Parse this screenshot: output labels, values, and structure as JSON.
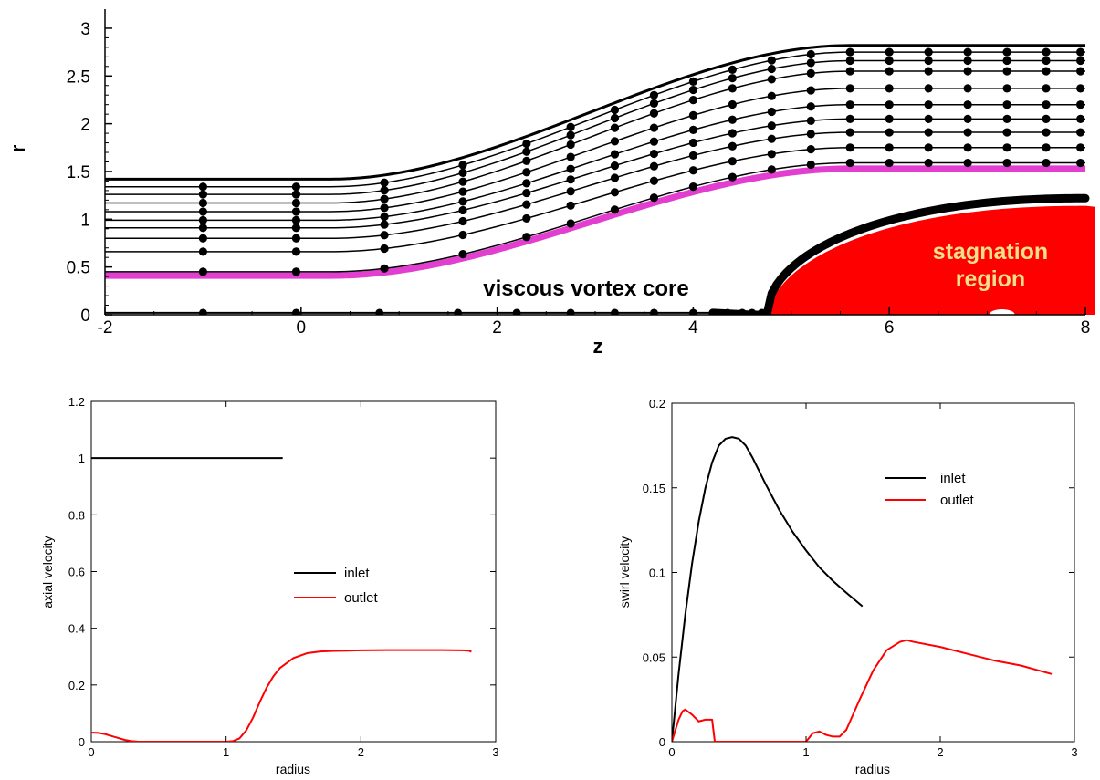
{
  "chart_data": [
    {
      "type": "line",
      "xlabel": "z",
      "ylabel": "r",
      "xlim": [
        -2,
        8
      ],
      "ylim": [
        0,
        3.2
      ],
      "x_ticks": [
        "-2",
        "0",
        "2",
        "4",
        "6",
        "8"
      ],
      "y_ticks": [
        "0",
        "0.5",
        "1",
        "1.5",
        "2",
        "2.5",
        "3"
      ],
      "grid": false,
      "colors": {
        "streamline": "#000000",
        "core_boundary": "#e23fd0",
        "stagnation": "#ff0000",
        "annotation_text": "#f5e08a"
      },
      "annotations": [
        "viscous vortex core",
        "stagnation",
        "region"
      ],
      "series": [
        {
          "inlet_r": 1.34,
          "outlet_r": 2.75,
          "markers": true
        },
        {
          "inlet_r": 1.26,
          "outlet_r": 2.66,
          "markers": true
        },
        {
          "inlet_r": 1.17,
          "outlet_r": 2.55,
          "markers": true
        },
        {
          "inlet_r": 1.08,
          "outlet_r": 2.37,
          "markers": true
        },
        {
          "inlet_r": 0.99,
          "outlet_r": 2.2,
          "markers": true
        },
        {
          "inlet_r": 0.91,
          "outlet_r": 2.05,
          "markers": true
        },
        {
          "inlet_r": 0.8,
          "outlet_r": 1.91,
          "markers": true
        },
        {
          "inlet_r": 0.66,
          "outlet_r": 1.75,
          "markers": true
        },
        {
          "inlet_r": 0.45,
          "outlet_r": 1.59,
          "markers": true
        }
      ],
      "wall": {
        "inlet_r": 1.42,
        "outlet_r": 2.82
      },
      "core_boundary": {
        "inlet_r": 0.41,
        "outlet_r": 1.53
      },
      "axis_line_markers_z": [
        -1.0,
        -0.05,
        0.8,
        1.6,
        2.2,
        2.75,
        3.2,
        3.6,
        4.0,
        4.2,
        4.35,
        4.5,
        4.6,
        4.7
      ]
    },
    {
      "type": "line",
      "xlabel": "radius",
      "ylabel": "axial velocity",
      "xlim": [
        0,
        3
      ],
      "ylim": [
        0,
        1.2
      ],
      "x_ticks": [
        "0",
        "1",
        "2",
        "3"
      ],
      "y_ticks": [
        "0",
        "0.2",
        "0.4",
        "0.6",
        "0.8",
        "1",
        "1.2"
      ],
      "grid": false,
      "legend_position": "center-right",
      "series": [
        {
          "name": "inlet",
          "color": "#000000",
          "x": [
            0,
            0.5,
            1.0,
            1.42
          ],
          "y": [
            1.0,
            1.0,
            1.0,
            1.0
          ]
        },
        {
          "name": "outlet",
          "color": "#ff0000",
          "x": [
            0,
            0.05,
            0.1,
            0.15,
            0.2,
            0.25,
            0.3,
            0.35,
            0.4,
            0.6,
            0.8,
            1.0,
            1.05,
            1.1,
            1.15,
            1.2,
            1.25,
            1.3,
            1.35,
            1.4,
            1.5,
            1.6,
            1.7,
            1.8,
            2.0,
            2.2,
            2.4,
            2.6,
            2.75,
            2.8,
            2.82
          ],
          "y": [
            0.032,
            0.031,
            0.027,
            0.02,
            0.013,
            0.006,
            0.002,
            0.0,
            0.0,
            0.0,
            0.0,
            0.0,
            0.002,
            0.012,
            0.04,
            0.085,
            0.14,
            0.19,
            0.23,
            0.26,
            0.295,
            0.312,
            0.318,
            0.32,
            0.322,
            0.323,
            0.323,
            0.323,
            0.322,
            0.321,
            0.317
          ]
        }
      ]
    },
    {
      "type": "line",
      "xlabel": "radius",
      "ylabel": "swirl velocity",
      "xlim": [
        0,
        3
      ],
      "ylim": [
        0,
        0.2
      ],
      "x_ticks": [
        "0",
        "1",
        "2",
        "3"
      ],
      "y_ticks": [
        "0",
        "0.05",
        "0.1",
        "0.15",
        "0.2"
      ],
      "grid": false,
      "legend_position": "top-right",
      "series": [
        {
          "name": "inlet",
          "color": "#000000",
          "x": [
            0,
            0.05,
            0.1,
            0.15,
            0.2,
            0.25,
            0.3,
            0.35,
            0.4,
            0.45,
            0.5,
            0.55,
            0.6,
            0.7,
            0.8,
            0.9,
            1.0,
            1.1,
            1.2,
            1.3,
            1.42
          ],
          "y": [
            0,
            0.04,
            0.075,
            0.105,
            0.13,
            0.15,
            0.165,
            0.175,
            0.179,
            0.18,
            0.179,
            0.175,
            0.168,
            0.152,
            0.137,
            0.124,
            0.113,
            0.103,
            0.095,
            0.088,
            0.08
          ]
        },
        {
          "name": "outlet",
          "color": "#ff0000",
          "x": [
            0,
            0.05,
            0.08,
            0.1,
            0.15,
            0.2,
            0.25,
            0.3,
            0.32,
            0.4,
            0.6,
            0.8,
            1.0,
            1.05,
            1.1,
            1.15,
            1.2,
            1.25,
            1.3,
            1.4,
            1.5,
            1.6,
            1.7,
            1.75,
            1.8,
            2.0,
            2.2,
            2.4,
            2.6,
            2.83
          ],
          "y": [
            0,
            0.013,
            0.018,
            0.019,
            0.016,
            0.012,
            0.013,
            0.013,
            0.0,
            0.0,
            0.0,
            0.0,
            0.0,
            0.005,
            0.006,
            0.004,
            0.003,
            0.003,
            0.007,
            0.025,
            0.042,
            0.054,
            0.059,
            0.06,
            0.059,
            0.056,
            0.052,
            0.048,
            0.045,
            0.04
          ]
        }
      ]
    }
  ]
}
